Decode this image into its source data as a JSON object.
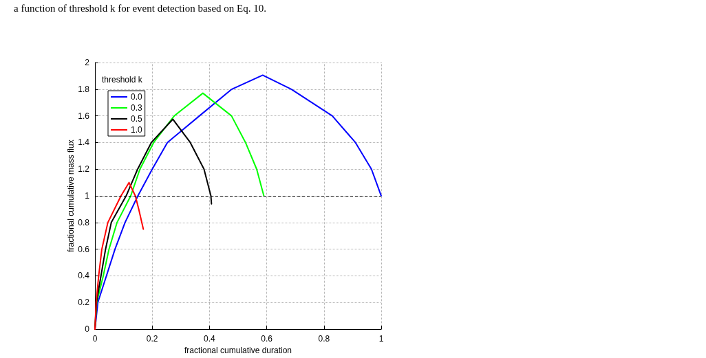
{
  "chart_data": {
    "type": "line",
    "annotations": [
      "a function of threshold k for event detection based on Eq. 10."
    ],
    "xlabel": "fractional cumulative duration",
    "ylabel": "fractional cumulative mass flux",
    "legend_title": "threshold k",
    "xlim": [
      0,
      1
    ],
    "xticks": [
      0,
      0.2,
      0.4,
      0.6,
      0.8,
      1
    ],
    "ylim": [
      0,
      2
    ],
    "yticks": [
      0,
      0.2,
      0.4,
      0.6,
      0.8,
      1,
      1.2,
      1.4,
      1.6,
      1.8,
      2
    ],
    "grid": true,
    "legend": "top left",
    "marker": "none",
    "line_style": "solid",
    "ref_lines": [
      {
        "axis": "y",
        "value": 1,
        "color": "#000000",
        "line_style": "dashed"
      }
    ],
    "series": [
      {
        "name": "0.0",
        "color": "#0000ff",
        "x": [
          0,
          0.01,
          0.04,
          0.07,
          0.105,
          0.15,
          0.2,
          0.253,
          0.365,
          0.478,
          0.586,
          0.686,
          0.829,
          0.91,
          0.966,
          1
        ],
        "values": [
          0,
          0.2,
          0.4,
          0.6,
          0.8,
          1.0,
          1.2,
          1.4,
          1.6,
          1.8,
          1.905,
          1.8,
          1.6,
          1.4,
          1.2,
          1.0
        ]
      },
      {
        "name": "0.3",
        "color": "#00ff00",
        "x": [
          0,
          0.006,
          0.029,
          0.049,
          0.077,
          0.125,
          0.157,
          0.205,
          0.277,
          0.377,
          0.477,
          0.526,
          0.565,
          0.59
        ],
        "values": [
          0,
          0.2,
          0.4,
          0.6,
          0.8,
          1.0,
          1.2,
          1.4,
          1.6,
          1.77,
          1.6,
          1.4,
          1.2,
          1.0
        ]
      },
      {
        "name": "0.5",
        "color": "#000000",
        "x": [
          0,
          0.005,
          0.021,
          0.037,
          0.057,
          0.109,
          0.149,
          0.197,
          0.272,
          0.333,
          0.381,
          0.405,
          0.407
        ],
        "values": [
          0,
          0.2,
          0.4,
          0.6,
          0.8,
          1.0,
          1.2,
          1.4,
          1.575,
          1.4,
          1.2,
          1.0,
          0.94
        ]
      },
      {
        "name": "1.0",
        "color": "#ff0000",
        "x": [
          0,
          0.004,
          0.013,
          0.024,
          0.045,
          0.091,
          0.119,
          0.141,
          0.153,
          0.169
        ],
        "values": [
          0,
          0.2,
          0.4,
          0.6,
          0.8,
          1.0,
          1.1,
          1.0,
          0.9,
          0.75
        ]
      }
    ]
  }
}
